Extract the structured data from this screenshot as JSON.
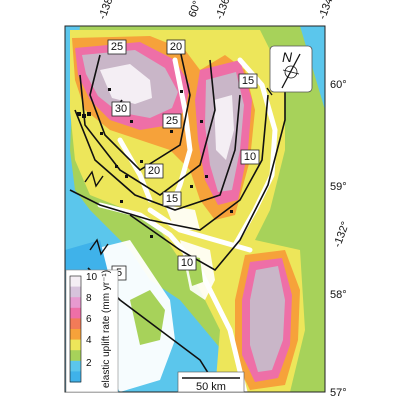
{
  "colors": {
    "ocean": "#5bc6ec",
    "land_low": "#a7d25a",
    "land_mid": "#ede65a",
    "land_orange": "#f6a23a",
    "land_pink": "#ee6fa7",
    "land_high": "#c9b6c8",
    "ice_white": "#f4eef4",
    "contour": "#111111",
    "frame": "#222222"
  },
  "axes": {
    "longitude_ticks_top": [
      "-138°",
      "60°",
      "-136°",
      "-134°"
    ],
    "latitude_ticks_right": [
      "60°",
      "59°",
      "58°",
      "57°"
    ],
    "longitude_tick_right": "-132°"
  },
  "contour_labels": [
    "25",
    "20",
    "15",
    "30",
    "25",
    "20",
    "15",
    "10",
    "10",
    "5"
  ],
  "colorbar": {
    "title": "elastic uplift rate (mm yr⁻¹)",
    "tick_labels": [
      "10",
      "8",
      "6",
      "4",
      "2"
    ],
    "stops": [
      {
        "value": 0,
        "color": "#3b5fc8"
      },
      {
        "value": 1,
        "color": "#3fb2ea"
      },
      {
        "value": 2,
        "color": "#5bc6ec"
      },
      {
        "value": 3,
        "color": "#a7d25a"
      },
      {
        "value": 4,
        "color": "#ede65a"
      },
      {
        "value": 5,
        "color": "#f6a23a"
      },
      {
        "value": 6,
        "color": "#f27b58"
      },
      {
        "value": 7,
        "color": "#ee6fa7"
      },
      {
        "value": 8,
        "color": "#e79ad0"
      },
      {
        "value": 9,
        "color": "#d7c3dc"
      },
      {
        "value": 10,
        "color": "#f4eef4"
      }
    ]
  },
  "scale_bar": {
    "label": "50 km"
  },
  "north_arrow": {
    "label": "N"
  }
}
